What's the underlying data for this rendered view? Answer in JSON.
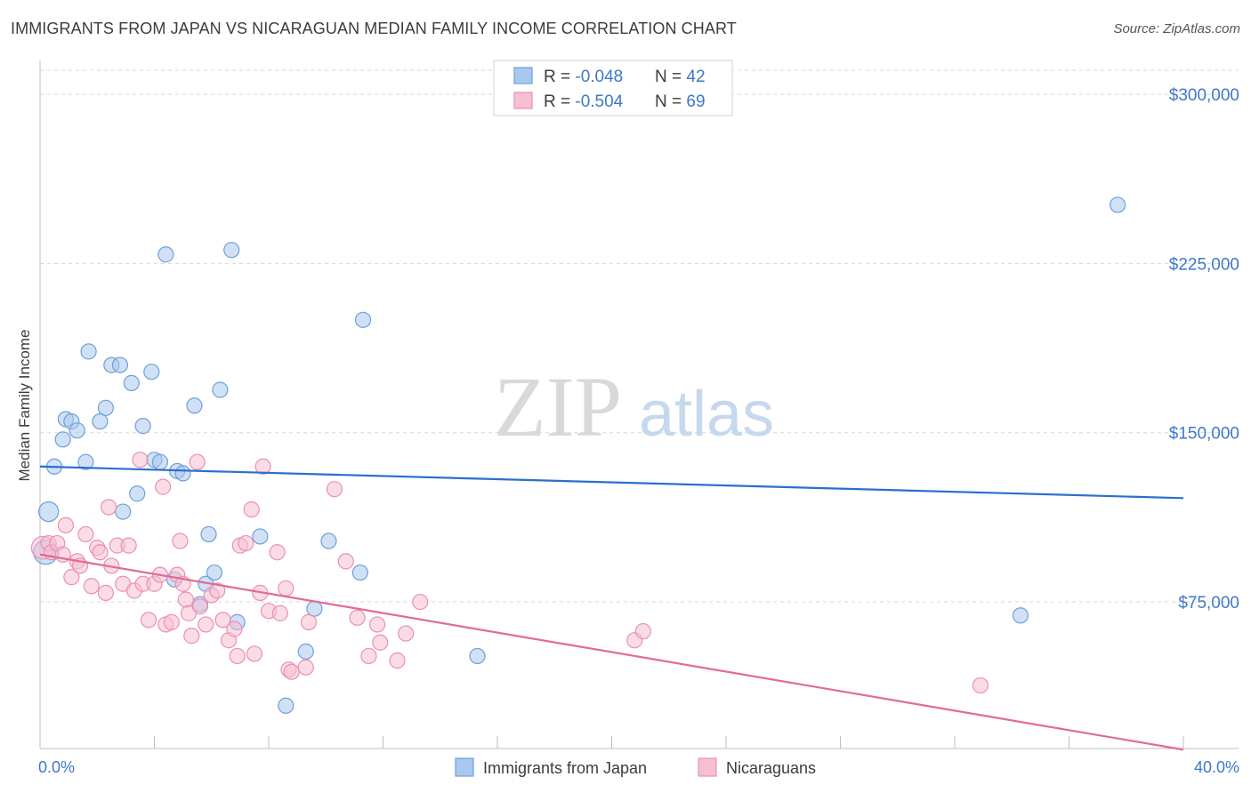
{
  "title": "IMMIGRANTS FROM JAPAN VS NICARAGUAN MEDIAN FAMILY INCOME CORRELATION CHART",
  "source": "Source: ZipAtlas.com",
  "watermark": {
    "zip": "ZIP",
    "atlas": "atlas"
  },
  "colors": {
    "blue_fill": "#a9c8ef",
    "blue_stroke": "#6f9fd8",
    "blue_line": "#2a6fcc",
    "pink_fill": "#f6bfd2",
    "pink_stroke": "#ec8fb0",
    "pink_line": "#e36a96",
    "axis_label": "#3f78c8",
    "grid": "#d8d8d8"
  },
  "legend_top": [
    {
      "r_label": "R = ",
      "r_value": "-0.048",
      "n_label": "N = ",
      "n_value": "42",
      "series": "japan"
    },
    {
      "r_label": "R = ",
      "r_value": "-0.504",
      "n_label": "N = ",
      "n_value": "69",
      "series": "nicaraguans"
    }
  ],
  "legend_bottom": [
    {
      "label": "Immigrants from Japan",
      "series": "japan"
    },
    {
      "label": "Nicaraguans",
      "series": "nicaraguans"
    }
  ],
  "chart_data": {
    "type": "scatter",
    "title": "IMMIGRANTS FROM JAPAN VS NICARAGUAN MEDIAN FAMILY INCOME CORRELATION CHART",
    "xlabel": "",
    "ylabel": "Median Family Income",
    "xlim": [
      0,
      40
    ],
    "ylim": [
      10000,
      315000
    ],
    "x_tick_labels": [
      "0.0%",
      "40.0%"
    ],
    "y_ticks": [
      75000,
      150000,
      225000,
      300000
    ],
    "y_tick_labels": [
      "$75,000",
      "$150,000",
      "$225,000",
      "$300,000"
    ],
    "series": [
      {
        "name": "Immigrants from Japan",
        "key": "japan",
        "points": [
          [
            0.2,
            97000,
            1.6
          ],
          [
            0.3,
            115000,
            1.3
          ],
          [
            0.5,
            135000,
            1
          ],
          [
            0.8,
            147000,
            1
          ],
          [
            0.9,
            156000,
            1
          ],
          [
            1.1,
            155000,
            1
          ],
          [
            1.3,
            151000,
            1
          ],
          [
            1.6,
            137000,
            1
          ],
          [
            1.7,
            186000,
            1
          ],
          [
            2.1,
            155000,
            1
          ],
          [
            2.3,
            161000,
            1
          ],
          [
            2.5,
            180000,
            1
          ],
          [
            2.8,
            180000,
            1
          ],
          [
            2.9,
            115000,
            1
          ],
          [
            3.2,
            172000,
            1
          ],
          [
            3.4,
            123000,
            1
          ],
          [
            3.6,
            153000,
            1
          ],
          [
            3.9,
            177000,
            1
          ],
          [
            4.0,
            138000,
            1
          ],
          [
            4.2,
            137000,
            1
          ],
          [
            4.4,
            229000,
            1
          ],
          [
            4.7,
            85000,
            1
          ],
          [
            4.8,
            133000,
            1
          ],
          [
            5.0,
            132000,
            1
          ],
          [
            5.4,
            162000,
            1
          ],
          [
            5.8,
            83000,
            1
          ],
          [
            5.9,
            105000,
            1
          ],
          [
            6.1,
            88000,
            1
          ],
          [
            6.3,
            169000,
            1
          ],
          [
            6.7,
            231000,
            1
          ],
          [
            6.9,
            66000,
            1
          ],
          [
            7.7,
            104000,
            1
          ],
          [
            8.6,
            29000,
            1
          ],
          [
            9.3,
            53000,
            1
          ],
          [
            9.6,
            72000,
            1
          ],
          [
            10.1,
            102000,
            1
          ],
          [
            11.2,
            88000,
            1
          ],
          [
            11.3,
            200000,
            1
          ],
          [
            15.3,
            51000,
            1
          ],
          [
            34.3,
            69000,
            1
          ],
          [
            37.7,
            251000,
            1
          ],
          [
            5.6,
            74000,
            1
          ]
        ],
        "trend": {
          "x": [
            0,
            40
          ],
          "y": [
            135000,
            121000
          ]
        }
      },
      {
        "name": "Nicaraguans",
        "key": "nicaraguans",
        "points": [
          [
            0.1,
            99000,
            1.5
          ],
          [
            0.3,
            101000,
            1
          ],
          [
            0.4,
            97000,
            1
          ],
          [
            0.6,
            101000,
            1
          ],
          [
            0.8,
            96000,
            1
          ],
          [
            0.9,
            109000,
            1
          ],
          [
            1.1,
            86000,
            1
          ],
          [
            1.3,
            93000,
            1
          ],
          [
            1.4,
            91000,
            1
          ],
          [
            1.6,
            105000,
            1
          ],
          [
            1.8,
            82000,
            1
          ],
          [
            2.0,
            99000,
            1
          ],
          [
            2.1,
            97000,
            1
          ],
          [
            2.3,
            79000,
            1
          ],
          [
            2.4,
            117000,
            1
          ],
          [
            2.5,
            91000,
            1
          ],
          [
            2.7,
            100000,
            1
          ],
          [
            2.9,
            83000,
            1
          ],
          [
            3.1,
            100000,
            1
          ],
          [
            3.3,
            80000,
            1
          ],
          [
            3.5,
            138000,
            1
          ],
          [
            3.6,
            83000,
            1
          ],
          [
            3.8,
            67000,
            1
          ],
          [
            4.0,
            83000,
            1
          ],
          [
            4.2,
            87000,
            1
          ],
          [
            4.3,
            126000,
            1
          ],
          [
            4.4,
            65000,
            1
          ],
          [
            4.6,
            66000,
            1
          ],
          [
            4.8,
            87000,
            1
          ],
          [
            4.9,
            102000,
            1
          ],
          [
            5.0,
            83000,
            1
          ],
          [
            5.1,
            76000,
            1
          ],
          [
            5.2,
            70000,
            1
          ],
          [
            5.3,
            60000,
            1
          ],
          [
            5.5,
            137000,
            1
          ],
          [
            5.6,
            73000,
            1
          ],
          [
            5.8,
            65000,
            1
          ],
          [
            6.0,
            78000,
            1
          ],
          [
            6.2,
            80000,
            1
          ],
          [
            6.4,
            67000,
            1
          ],
          [
            6.6,
            58000,
            1
          ],
          [
            6.8,
            63000,
            1
          ],
          [
            6.9,
            51000,
            1
          ],
          [
            7.0,
            100000,
            1
          ],
          [
            7.2,
            101000,
            1
          ],
          [
            7.4,
            116000,
            1
          ],
          [
            7.5,
            52000,
            1
          ],
          [
            7.8,
            135000,
            1
          ],
          [
            8.0,
            71000,
            1
          ],
          [
            8.3,
            97000,
            1
          ],
          [
            8.4,
            70000,
            1
          ],
          [
            8.6,
            81000,
            1
          ],
          [
            8.7,
            45000,
            1
          ],
          [
            8.8,
            44000,
            1
          ],
          [
            9.3,
            46000,
            1
          ],
          [
            9.4,
            66000,
            1
          ],
          [
            10.3,
            125000,
            1
          ],
          [
            10.7,
            93000,
            1
          ],
          [
            11.1,
            68000,
            1
          ],
          [
            11.5,
            51000,
            1
          ],
          [
            11.8,
            65000,
            1
          ],
          [
            11.9,
            57000,
            1
          ],
          [
            12.5,
            49000,
            1
          ],
          [
            12.8,
            61000,
            1
          ],
          [
            13.3,
            75000,
            1
          ],
          [
            20.8,
            58000,
            1
          ],
          [
            21.1,
            62000,
            1
          ],
          [
            32.9,
            38000,
            1
          ],
          [
            7.7,
            79000,
            1
          ]
        ],
        "trend": {
          "x": [
            0,
            40
          ],
          "y": [
            96000,
            9500
          ]
        }
      }
    ]
  }
}
